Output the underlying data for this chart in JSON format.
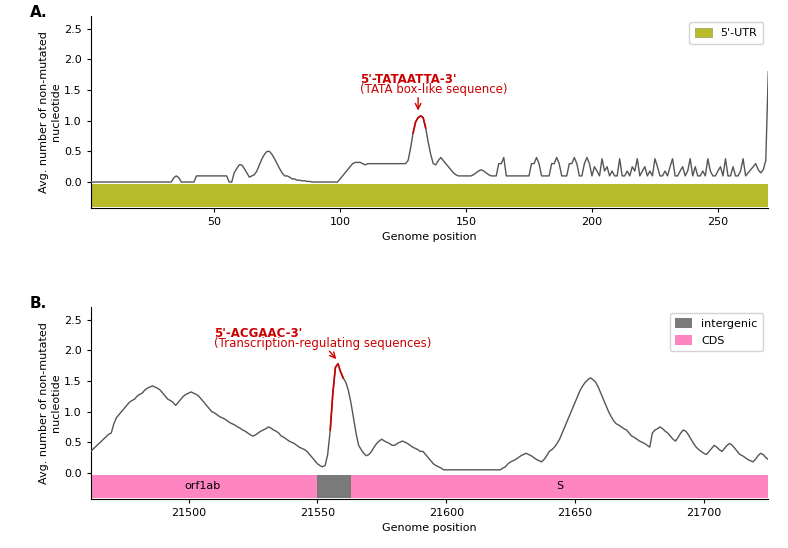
{
  "panel_A": {
    "ylabel": "Avg. number of non-mutated\nnucleotide",
    "xlabel": "Genome position",
    "xlim": [
      1,
      270
    ],
    "ylim": [
      -0.42,
      2.7
    ],
    "yticks": [
      0.0,
      0.5,
      1.0,
      1.5,
      2.0,
      2.5
    ],
    "xticks": [
      50,
      100,
      150,
      200,
      250
    ],
    "utr_color": "#b8bb2a",
    "annotation_text1": "5'-TATAATTA-3'",
    "annotation_text2": "(TATA box-like sequence)",
    "annotation_color": "#cc0000",
    "red_peak_start_idx": 128,
    "red_peak_end_idx": 133,
    "legend_label": "5'-UTR",
    "legend_color": "#b8bb2a"
  },
  "panel_B": {
    "ylabel": "Avg. number of non-mutated\nnucleotide",
    "xlabel": "Genome position",
    "xlim": [
      21462,
      21725
    ],
    "ylim": [
      -0.42,
      2.7
    ],
    "yticks": [
      0.0,
      0.5,
      1.0,
      1.5,
      2.0,
      2.5
    ],
    "xticks": [
      21500,
      21550,
      21600,
      21650,
      21700
    ],
    "cds_color": "#ff85c2",
    "intergenic_color": "#7a7a7a",
    "annotation_text1": "5'-ACGAAC-3'",
    "annotation_text2": "(Transcription-regulating sequences)",
    "annotation_color": "#cc0000",
    "red_peak_start_pos": 21556,
    "red_peak_end_pos": 21559,
    "orf1ab_start": 21462,
    "orf1ab_end": 21549,
    "intergenic_start": 21550,
    "intergenic_end": 21562,
    "S_start": 21563,
    "S_end": 21725,
    "legend_intergenic_color": "#7a7a7a",
    "legend_cds_color": "#ff85c2"
  },
  "line_color": "#555555",
  "line_color_red": "#cc0000",
  "line_width": 1.0,
  "label_fontsize": 8,
  "tick_fontsize": 8,
  "annot_fontsize": 8.5
}
